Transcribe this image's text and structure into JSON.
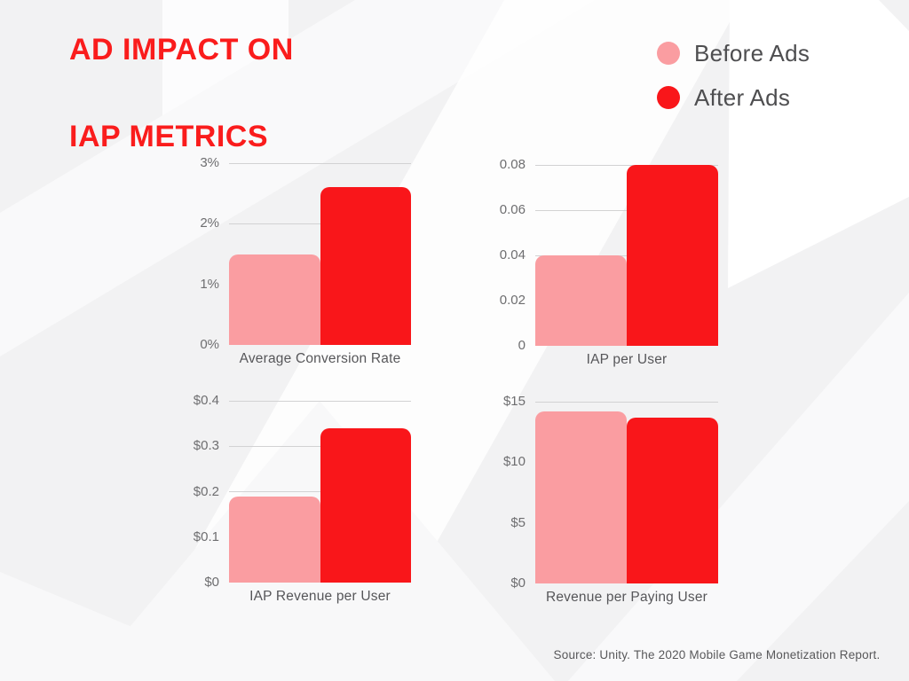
{
  "title": {
    "line1": "AD IMPACT ON",
    "line2": "IAP METRICS",
    "color": "#fa1c1c"
  },
  "legend": {
    "items": [
      {
        "label": "Before Ads",
        "color": "#fa9da1"
      },
      {
        "label": "After Ads",
        "color": "#f9161a"
      }
    ]
  },
  "source": {
    "text": "Source: Unity. The 2020 Mobile Game Monetization Report."
  },
  "colors": {
    "before_bar": "#fa9da1",
    "after_bar": "#f9161a",
    "gridline": "#d2d2d3",
    "background": "#f2f2f3"
  },
  "chart_data": [
    {
      "type": "bar",
      "title": "Average Conversion Rate",
      "categories": [
        "Before Ads",
        "After Ads"
      ],
      "values": [
        1.5,
        2.6
      ],
      "ylim": [
        0,
        3
      ],
      "grid": true,
      "ticks": [
        {
          "value": 0,
          "label": "0%"
        },
        {
          "value": 1,
          "label": "1%"
        },
        {
          "value": 2,
          "label": "2%"
        },
        {
          "value": 3,
          "label": "3%"
        }
      ]
    },
    {
      "type": "bar",
      "title": "IAP per User",
      "categories": [
        "Before Ads",
        "After Ads"
      ],
      "values": [
        0.04,
        0.08
      ],
      "ylim": [
        0,
        0.08
      ],
      "grid": true,
      "ticks": [
        {
          "value": 0,
          "label": "0"
        },
        {
          "value": 0.02,
          "label": "0.02"
        },
        {
          "value": 0.04,
          "label": "0.04"
        },
        {
          "value": 0.06,
          "label": "0.06"
        },
        {
          "value": 0.08,
          "label": "0.08"
        }
      ]
    },
    {
      "type": "bar",
      "title": "IAP Revenue per User",
      "categories": [
        "Before Ads",
        "After Ads"
      ],
      "values": [
        0.19,
        0.34
      ],
      "ylim": [
        0,
        0.4
      ],
      "grid": true,
      "ticks": [
        {
          "value": 0,
          "label": "$0"
        },
        {
          "value": 0.1,
          "label": "$0.1"
        },
        {
          "value": 0.2,
          "label": "$0.2"
        },
        {
          "value": 0.3,
          "label": "$0.3"
        },
        {
          "value": 0.4,
          "label": "$0.4"
        }
      ]
    },
    {
      "type": "bar",
      "title": "Revenue per Paying User",
      "categories": [
        "Before Ads",
        "After Ads"
      ],
      "values": [
        14.2,
        13.7
      ],
      "ylim": [
        0,
        15
      ],
      "grid": true,
      "ticks": [
        {
          "value": 0,
          "label": "$0"
        },
        {
          "value": 5,
          "label": "$5"
        },
        {
          "value": 10,
          "label": "$10"
        },
        {
          "value": 15,
          "label": "$15"
        }
      ]
    }
  ]
}
